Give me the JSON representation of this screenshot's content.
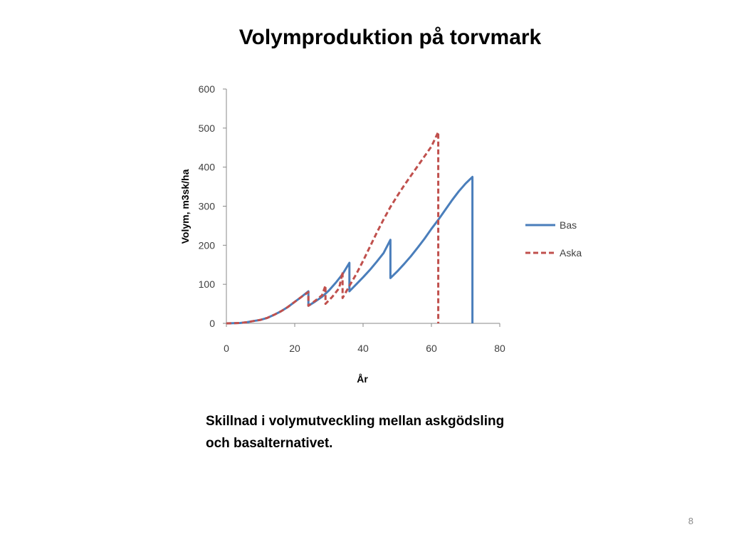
{
  "slide": {
    "title": "Volymproduktion på torvmark",
    "caption_line1": "Skillnad i volymutveckling mellan askgödsling",
    "caption_line2": "och basalternativet.",
    "page_number": "8"
  },
  "chart_data": {
    "type": "line",
    "title": "",
    "xlabel": "År",
    "ylabel": "Volym, m3sk/ha",
    "xlim": [
      0,
      80
    ],
    "ylim": [
      0,
      600
    ],
    "x_ticks": [
      0,
      20,
      40,
      60,
      80
    ],
    "y_ticks": [
      0,
      100,
      200,
      300,
      400,
      500,
      600
    ],
    "grid": false,
    "legend_position": "right",
    "series": [
      {
        "name": "Bas",
        "color": "#4a7ebb",
        "style": "solid",
        "points": [
          [
            0,
            0
          ],
          [
            4,
            1
          ],
          [
            6,
            3
          ],
          [
            8,
            6
          ],
          [
            10,
            9
          ],
          [
            12,
            14
          ],
          [
            14,
            22
          ],
          [
            16,
            31
          ],
          [
            18,
            42
          ],
          [
            20,
            55
          ],
          [
            22,
            68
          ],
          [
            24,
            82
          ],
          [
            24,
            45
          ],
          [
            26,
            56
          ],
          [
            28,
            68
          ],
          [
            30,
            84
          ],
          [
            32,
            104
          ],
          [
            34,
            126
          ],
          [
            36,
            155
          ],
          [
            36,
            82
          ],
          [
            38,
            100
          ],
          [
            40,
            118
          ],
          [
            42,
            137
          ],
          [
            44,
            158
          ],
          [
            46,
            180
          ],
          [
            48,
            214
          ],
          [
            48,
            116
          ],
          [
            50,
            133
          ],
          [
            52,
            152
          ],
          [
            54,
            172
          ],
          [
            56,
            194
          ],
          [
            58,
            217
          ],
          [
            60,
            242
          ],
          [
            62,
            265
          ],
          [
            64,
            290
          ],
          [
            66,
            315
          ],
          [
            68,
            338
          ],
          [
            70,
            358
          ],
          [
            72,
            375
          ],
          [
            72,
            0
          ]
        ]
      },
      {
        "name": "Aska",
        "color": "#c0504d",
        "style": "dashed",
        "points": [
          [
            0,
            0
          ],
          [
            4,
            1
          ],
          [
            6,
            3
          ],
          [
            8,
            6
          ],
          [
            10,
            9
          ],
          [
            12,
            14
          ],
          [
            14,
            22
          ],
          [
            16,
            31
          ],
          [
            18,
            42
          ],
          [
            20,
            55
          ],
          [
            22,
            68
          ],
          [
            24,
            80
          ],
          [
            24,
            45
          ],
          [
            26,
            58
          ],
          [
            28,
            72
          ],
          [
            29,
            97
          ],
          [
            29,
            50
          ],
          [
            31,
            68
          ],
          [
            33,
            90
          ],
          [
            34,
            132
          ],
          [
            34,
            65
          ],
          [
            36,
            96
          ],
          [
            38,
            126
          ],
          [
            40,
            160
          ],
          [
            42,
            196
          ],
          [
            44,
            232
          ],
          [
            46,
            266
          ],
          [
            48,
            298
          ],
          [
            50,
            326
          ],
          [
            52,
            353
          ],
          [
            54,
            378
          ],
          [
            56,
            403
          ],
          [
            58,
            428
          ],
          [
            60,
            453
          ],
          [
            62,
            490
          ],
          [
            62,
            0
          ]
        ]
      }
    ]
  }
}
